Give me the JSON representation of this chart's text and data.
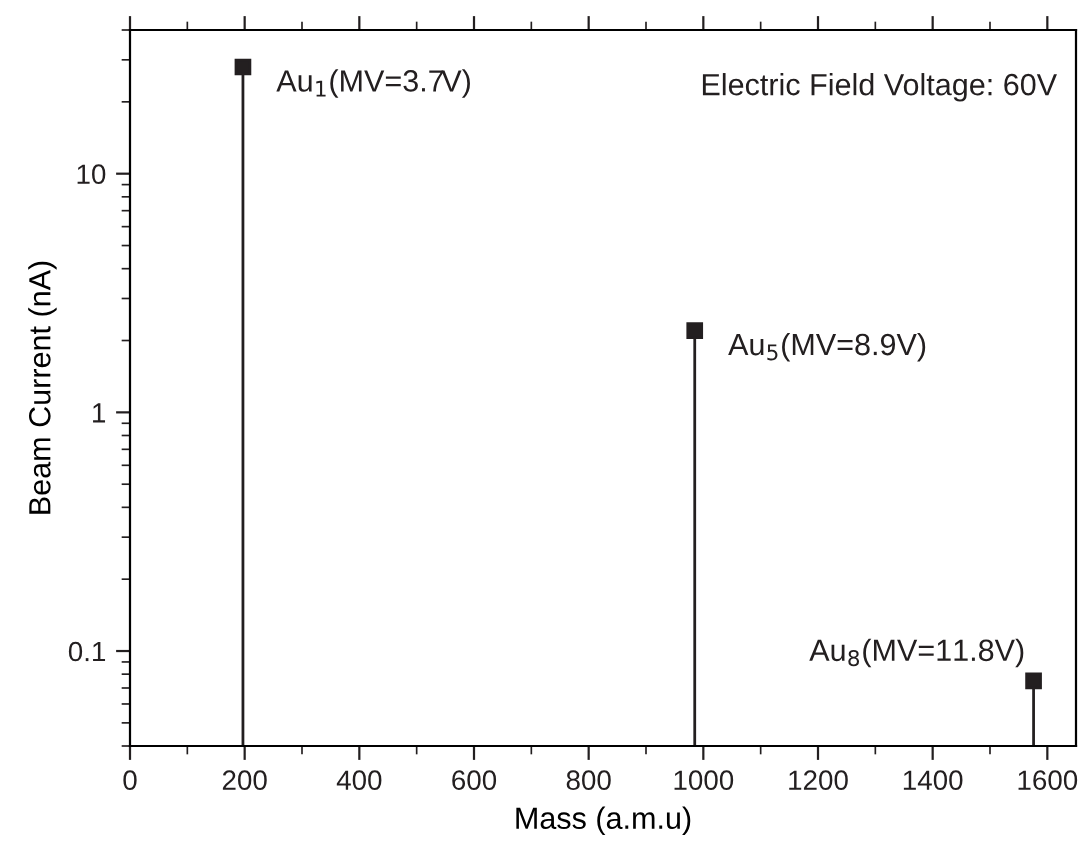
{
  "chart_data": {
    "type": "lollipop",
    "xlabel": "Mass (a.m.u)",
    "ylabel": "Beam Current (nA)",
    "x": [
      197,
      985,
      1576
    ],
    "series": [
      {
        "color": "#231f20",
        "values": [
          28,
          2.2,
          0.075
        ]
      }
    ],
    "marker": "square",
    "log": "y",
    "legend": false,
    "xlim": [
      0,
      1650
    ],
    "xticks": [
      0,
      200,
      400,
      600,
      800,
      1000,
      1200,
      1400,
      1600
    ],
    "ylim": [
      0.04,
      40
    ],
    "yticks": [
      0.1,
      1,
      10
    ],
    "annotations": [
      {
        "text": "Au$_{1}$(MV=3.7V)",
        "x": 197,
        "y": 28
      },
      {
        "text": "Au$_{5}$(MV=8.9V)",
        "x": 985,
        "y": 2.2
      },
      {
        "text": "Au$_{8}$(MV=11.8V)",
        "x": 1576,
        "y": 0.075
      },
      "Electric Field Voltage: 60V"
    ]
  }
}
